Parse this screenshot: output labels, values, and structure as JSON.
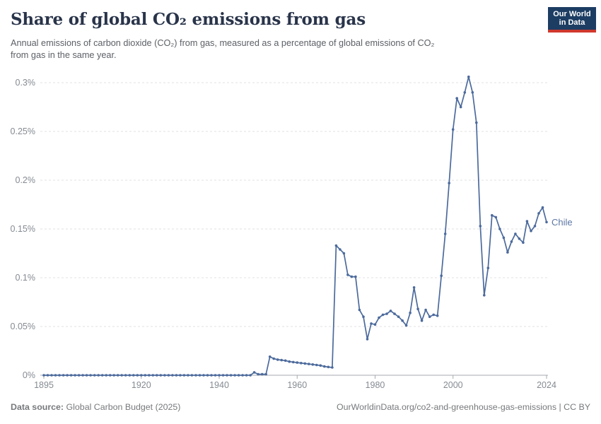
{
  "header": {
    "title": "Share of global CO₂ emissions from gas",
    "subtitle_lines": [
      "Annual emissions of carbon dioxide (CO₂) from gas, measured as a percentage of global emissions of CO₂",
      "from gas in the same year."
    ],
    "logo": {
      "line1": "Our World",
      "line2": "in Data"
    }
  },
  "colors": {
    "line": "#4c6a9c",
    "entity_label": "#5c77a3",
    "logo_navy": "#1d3d63",
    "logo_red": "#d0382d",
    "grid": "#e0e0e0",
    "axis": "#a5aaaf",
    "tick_text": "#858b92"
  },
  "chart_data": {
    "type": "line",
    "title": "Share of global CO₂ emissions from gas",
    "xlabel": "",
    "ylabel": "",
    "grid": "horizontal-dashed",
    "legend_position": "end-of-line-label",
    "xlim": [
      1895,
      2024
    ],
    "ylim": [
      0,
      0.31
    ],
    "x_ticks": [
      1895,
      1920,
      1940,
      1960,
      1980,
      2000,
      2024
    ],
    "y_ticks": [
      0,
      0.05,
      0.1,
      0.15,
      0.2,
      0.25,
      0.3
    ],
    "y_tick_labels": [
      "0%",
      "0.05%",
      "0.1%",
      "0.15%",
      "0.2%",
      "0.25%",
      "0.3%"
    ],
    "series": [
      {
        "name": "Chile",
        "end_label": "Chile",
        "unit": "%",
        "years": [
          1895,
          1896,
          1897,
          1898,
          1899,
          1900,
          1901,
          1902,
          1903,
          1904,
          1905,
          1906,
          1907,
          1908,
          1909,
          1910,
          1911,
          1912,
          1913,
          1914,
          1915,
          1916,
          1917,
          1918,
          1919,
          1920,
          1921,
          1922,
          1923,
          1924,
          1925,
          1926,
          1927,
          1928,
          1929,
          1930,
          1931,
          1932,
          1933,
          1934,
          1935,
          1936,
          1937,
          1938,
          1939,
          1940,
          1941,
          1942,
          1943,
          1944,
          1945,
          1946,
          1947,
          1948,
          1949,
          1950,
          1951,
          1952,
          1953,
          1954,
          1955,
          1956,
          1957,
          1958,
          1959,
          1960,
          1961,
          1962,
          1963,
          1964,
          1965,
          1966,
          1967,
          1968,
          1969,
          1970,
          1971,
          1972,
          1973,
          1974,
          1975,
          1976,
          1977,
          1978,
          1979,
          1980,
          1981,
          1982,
          1983,
          1984,
          1985,
          1986,
          1987,
          1988,
          1989,
          1990,
          1991,
          1992,
          1993,
          1994,
          1995,
          1996,
          1997,
          1998,
          1999,
          2000,
          2001,
          2002,
          2003,
          2004,
          2005,
          2006,
          2007,
          2008,
          2009,
          2010,
          2011,
          2012,
          2013,
          2014,
          2015,
          2016,
          2017,
          2018,
          2019,
          2020,
          2021,
          2022,
          2023,
          2024
        ],
        "values": [
          0,
          0,
          0,
          0,
          0,
          0,
          0,
          0,
          0,
          0,
          0,
          0,
          0,
          0,
          0,
          0,
          0,
          0,
          0,
          0,
          0,
          0,
          0,
          0,
          0,
          0,
          0,
          0,
          0,
          0,
          0,
          0,
          0,
          0,
          0,
          0,
          0,
          0,
          0,
          0,
          0,
          0,
          0,
          0,
          0,
          0,
          0,
          0,
          0,
          0,
          0,
          0,
          0,
          0,
          0.003,
          0.001,
          0.001,
          0.001,
          0.019,
          0.017,
          0.016,
          0.0155,
          0.015,
          0.014,
          0.0135,
          0.013,
          0.0125,
          0.012,
          0.0115,
          0.011,
          0.0105,
          0.01,
          0.009,
          0.0085,
          0.008,
          0.133,
          0.129,
          0.125,
          0.103,
          0.101,
          0.101,
          0.067,
          0.06,
          0.037,
          0.053,
          0.052,
          0.059,
          0.062,
          0.063,
          0.066,
          0.063,
          0.06,
          0.056,
          0.051,
          0.064,
          0.09,
          0.068,
          0.056,
          0.067,
          0.06,
          0.062,
          0.061,
          0.102,
          0.145,
          0.197,
          0.252,
          0.284,
          0.275,
          0.29,
          0.306,
          0.29,
          0.259,
          0.153,
          0.082,
          0.11,
          0.164,
          0.162,
          0.15,
          0.141,
          0.126,
          0.137,
          0.145,
          0.14,
          0.136,
          0.158,
          0.148,
          0.153,
          0.166,
          0.172,
          0.157
        ]
      }
    ]
  },
  "footer": {
    "datasource_label": "Data source:",
    "datasource_value": "Global Carbon Budget (2025)",
    "attribution": "OurWorldinData.org/co2-and-greenhouse-gas-emissions | CC BY"
  }
}
